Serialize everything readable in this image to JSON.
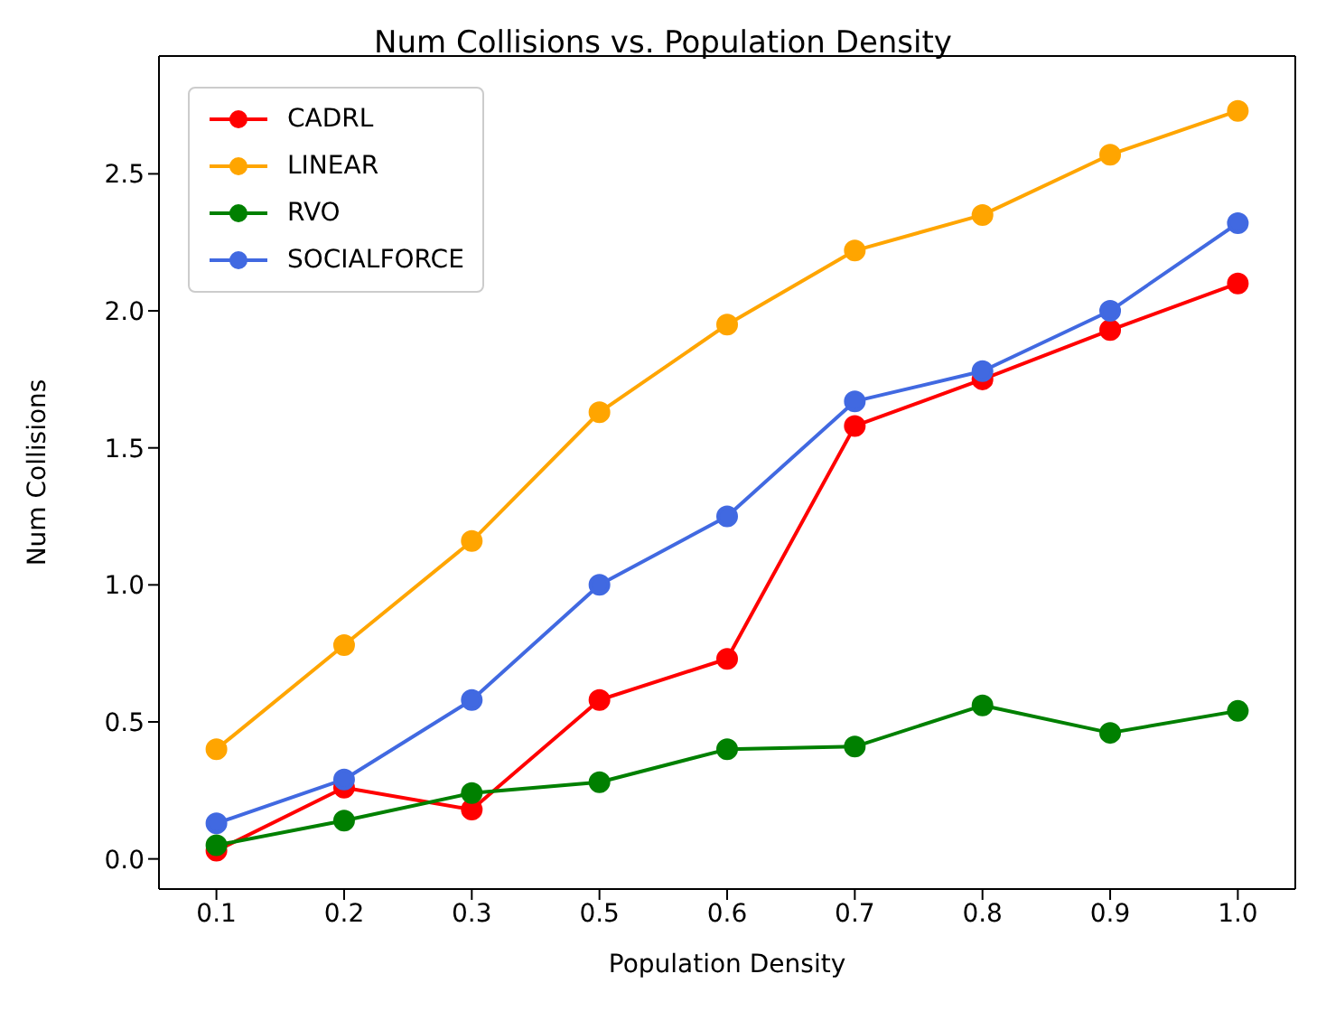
{
  "chart_data": {
    "type": "line",
    "title": "Num Collisions vs. Population Density",
    "xlabel": "Population Density",
    "ylabel": "Num Collisions",
    "categories": [
      "0.1",
      "0.2",
      "0.3",
      "0.5",
      "0.6",
      "0.7",
      "0.8",
      "0.9",
      "1.0"
    ],
    "series": [
      {
        "name": "CADRL",
        "color": "#ff0000",
        "values": [
          0.03,
          0.26,
          0.18,
          0.58,
          0.73,
          1.58,
          1.75,
          1.93,
          2.1
        ]
      },
      {
        "name": "LINEAR",
        "color": "#ffa500",
        "values": [
          0.4,
          0.78,
          1.16,
          1.63,
          1.95,
          2.22,
          2.35,
          2.57,
          2.73
        ]
      },
      {
        "name": "RVO",
        "color": "#008000",
        "values": [
          0.05,
          0.14,
          0.24,
          0.28,
          0.4,
          0.41,
          0.56,
          0.46,
          0.54
        ]
      },
      {
        "name": "SOCIALFORCE",
        "color": "#4169e1",
        "values": [
          0.13,
          0.29,
          0.58,
          1.0,
          1.25,
          1.67,
          1.78,
          2.0,
          2.32
        ]
      }
    ],
    "ylim": [
      -0.11,
      2.93
    ],
    "yticks": [
      {
        "value": 0,
        "label": "0.0"
      },
      0.5,
      {
        "value": 1,
        "label": "1.0"
      },
      1.5,
      {
        "value": 2,
        "label": "2.0"
      },
      2.5
    ],
    "grid": false,
    "legend": "top left",
    "marker": "circle",
    "line_style": "solid"
  }
}
